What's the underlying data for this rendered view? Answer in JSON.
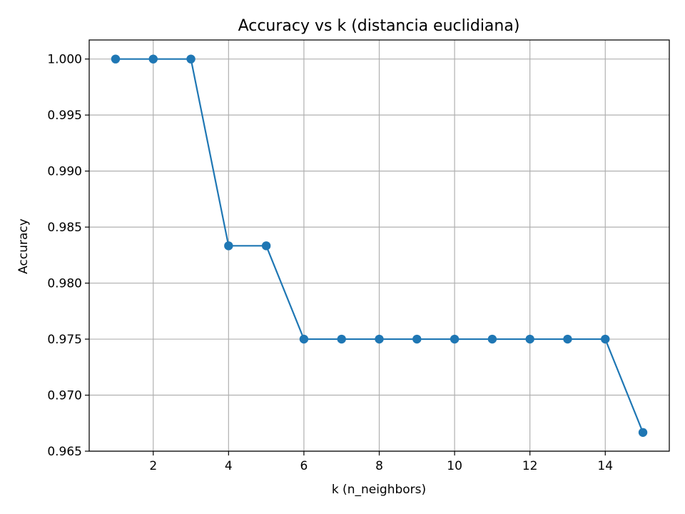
{
  "chart_data": {
    "type": "line",
    "title": "Accuracy vs k (distancia euclidiana)",
    "xlabel": "k (n_neighbors)",
    "ylabel": "Accuracy",
    "x": [
      1,
      2,
      3,
      4,
      5,
      6,
      7,
      8,
      9,
      10,
      11,
      12,
      13,
      14,
      15
    ],
    "series": [
      {
        "values": [
          1.0,
          1.0,
          1.0,
          0.98333,
          0.98333,
          0.975,
          0.975,
          0.975,
          0.975,
          0.975,
          0.975,
          0.975,
          0.975,
          0.975,
          0.96667
        ],
        "color": "#1f77b4",
        "marker": "circle"
      }
    ],
    "xlim": [
      0.3,
      15.7
    ],
    "ylim": [
      0.965,
      1.0017
    ],
    "xticks": [
      2,
      4,
      6,
      8,
      10,
      12,
      14
    ],
    "xtick_labels": [
      "2",
      "4",
      "6",
      "8",
      "10",
      "12",
      "14"
    ],
    "yticks": [
      0.965,
      0.97,
      0.975,
      0.98,
      0.985,
      0.99,
      0.995,
      1.0
    ],
    "ytick_labels": [
      "0.965",
      "0.970",
      "0.975",
      "0.980",
      "0.985",
      "0.990",
      "0.995",
      "1.000"
    ],
    "grid": true,
    "grid_color": "#b0b0b0",
    "background": "#ffffff"
  }
}
